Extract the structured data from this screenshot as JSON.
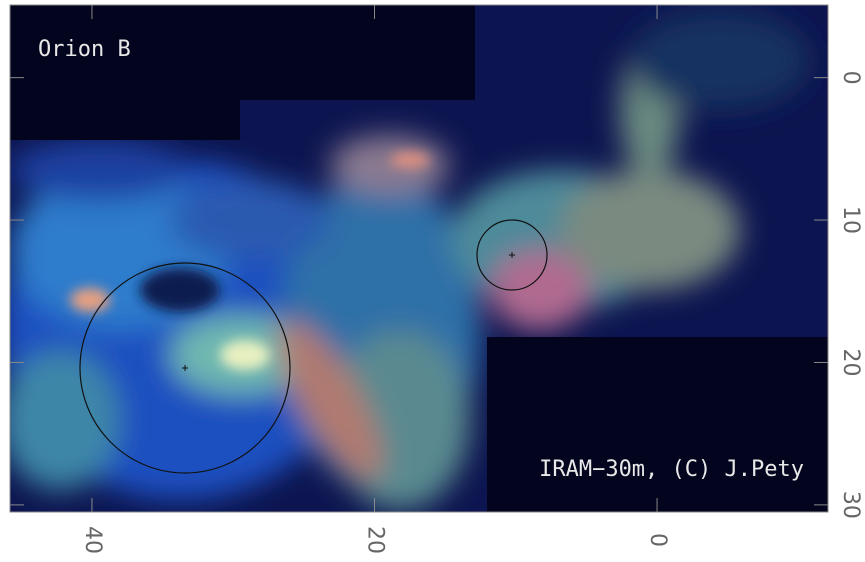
{
  "image": {
    "title": "Orion B",
    "credit": "IRAM−30m, (C) J.Pety"
  },
  "x_axis": {
    "xlim": [
      45.8,
      -12.1
    ],
    "xticks": [
      40,
      20,
      0
    ]
  },
  "y_axis": {
    "ylim": [
      -5.1,
      30.5
    ],
    "yticks": [
      0,
      10,
      20,
      30
    ]
  }
}
